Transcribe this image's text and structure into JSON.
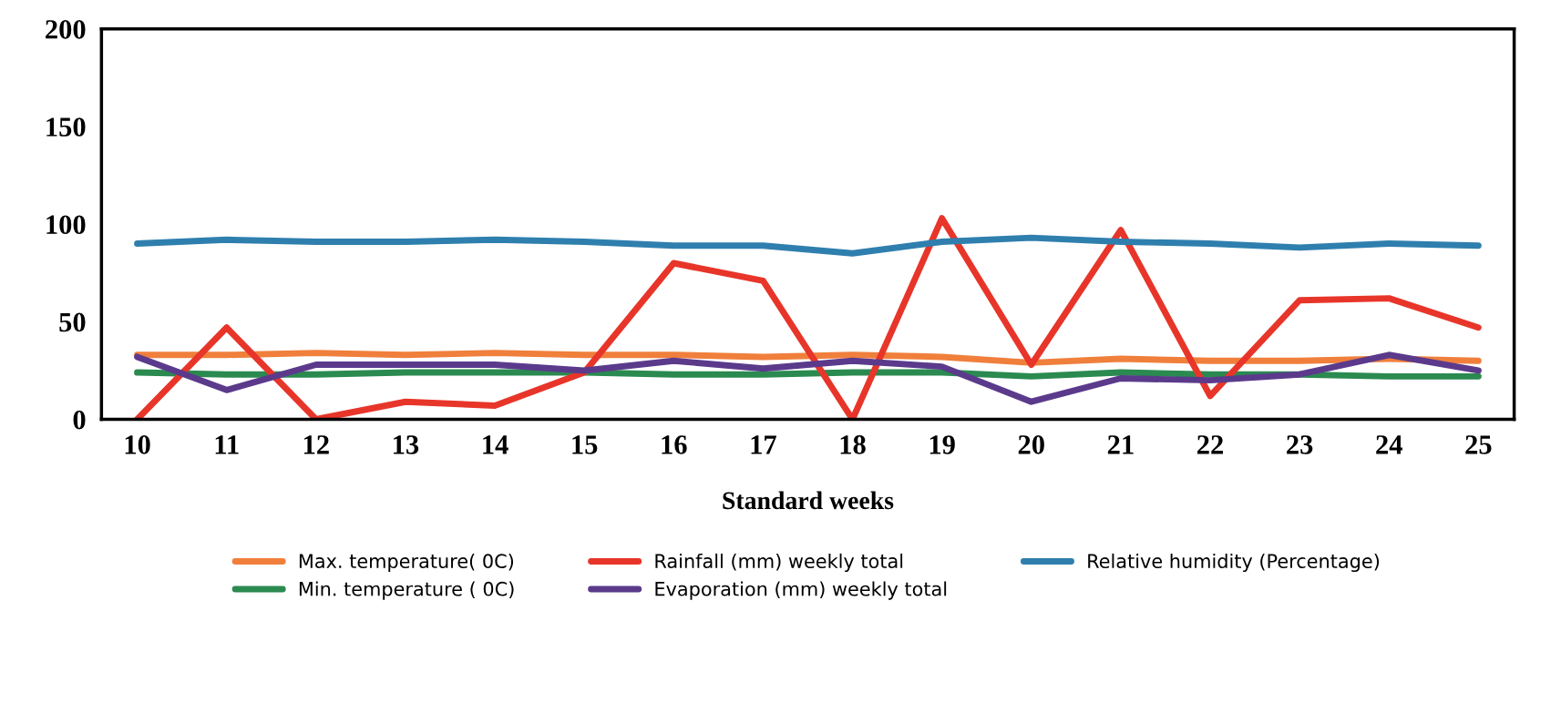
{
  "chart_data": {
    "type": "line",
    "xlabel": "Standard weeks",
    "categories": [
      "10",
      "11",
      "12",
      "13",
      "14",
      "15",
      "16",
      "17",
      "18",
      "19",
      "20",
      "21",
      "22",
      "23",
      "24",
      "25"
    ],
    "series": [
      {
        "name": "Max. temperature( 0C)",
        "color": "#f07f3c",
        "values": [
          33,
          33,
          34,
          33,
          34,
          33,
          33,
          32,
          33,
          32,
          29,
          31,
          30,
          30,
          31,
          30
        ]
      },
      {
        "name": "Min. temperature ( 0C)",
        "color": "#2a8a50",
        "values": [
          24,
          23,
          23,
          24,
          24,
          24,
          23,
          23,
          24,
          24,
          22,
          24,
          23,
          23,
          22,
          22
        ]
      },
      {
        "name": "Rainfall (mm) weekly total",
        "color": "#e8352a",
        "values": [
          0,
          47,
          0,
          9,
          7,
          24,
          80,
          71,
          0,
          103,
          28,
          97,
          12,
          61,
          62,
          47
        ]
      },
      {
        "name": "Evaporation (mm) weekly total",
        "color": "#5b3a8c",
        "values": [
          32,
          15,
          28,
          28,
          28,
          25,
          30,
          26,
          30,
          27,
          9,
          21,
          20,
          23,
          33,
          25
        ]
      },
      {
        "name": "Relative humidity (Percentage)",
        "color": "#2f7fae",
        "values": [
          90,
          92,
          91,
          91,
          92,
          91,
          89,
          89,
          85,
          91,
          93,
          91,
          90,
          88,
          90,
          89
        ]
      }
    ],
    "ylim": [
      0,
      200
    ],
    "yticks": [
      0,
      50,
      100,
      150,
      200
    ],
    "grid": false,
    "legend": "bottom",
    "marker": "none",
    "line_style": "solid"
  }
}
